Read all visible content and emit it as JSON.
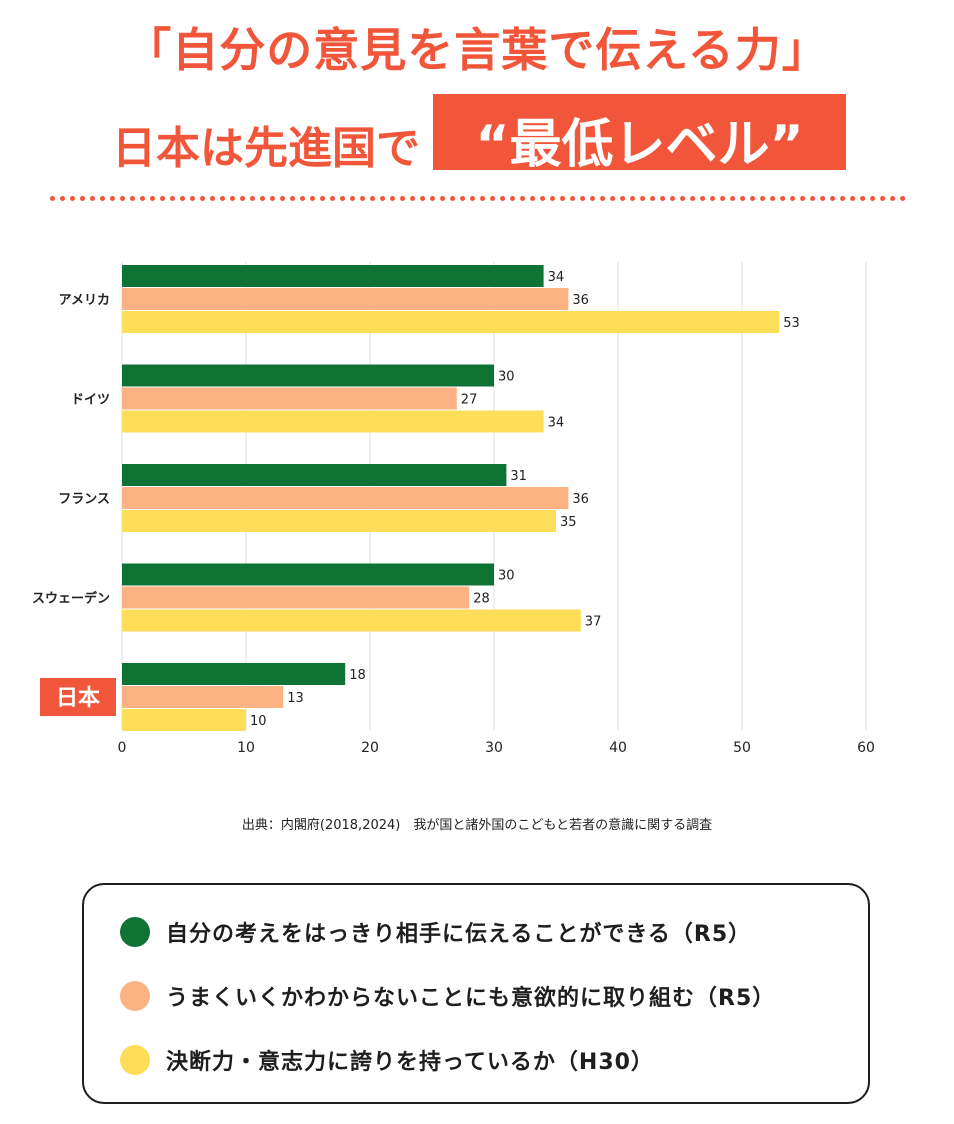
{
  "header": {
    "line1": "「自分の意見を言葉で伝える力」",
    "line2": "日本は先進国で",
    "highlight": "“最低レベル”"
  },
  "colors": {
    "accent": "#f1563a",
    "series1": "#0f7335",
    "series2": "#fdb284",
    "series3": "#fede58"
  },
  "chart_data": {
    "type": "bar",
    "orientation": "horizontal",
    "categories": [
      "アメリカ",
      "ドイツ",
      "フランス",
      "スウェーデン",
      "日本"
    ],
    "highlighted_category": "日本",
    "series": [
      {
        "name": "自分の考えをはっきり相手に伝えることができる（R5）",
        "values": [
          34,
          30,
          31,
          30,
          18
        ]
      },
      {
        "name": "うまくいくかわからないことにも意欲的に取り組む（R5）",
        "values": [
          36,
          27,
          36,
          28,
          13
        ]
      },
      {
        "name": "決断力・意志力に誇りを持っているか（H30）",
        "values": [
          53,
          34,
          35,
          37,
          10
        ]
      }
    ],
    "xlim": [
      0,
      60
    ],
    "xticks": [
      "0",
      "10",
      "20",
      "30",
      "40",
      "50",
      "60"
    ],
    "grid": true,
    "legend_position": "bottom"
  },
  "source": "出典：内閣府(2018,2024)　我が国と諸外国のこどもと若者の意識に関する調査",
  "legend": [
    {
      "label": "自分の考えをはっきり相手に伝えることができる（R5）"
    },
    {
      "label": "うまくいくかわからないことにも意欲的に取り組む（R5）"
    },
    {
      "label": "決断力・意志力に誇りを持っているか（H30）"
    }
  ]
}
